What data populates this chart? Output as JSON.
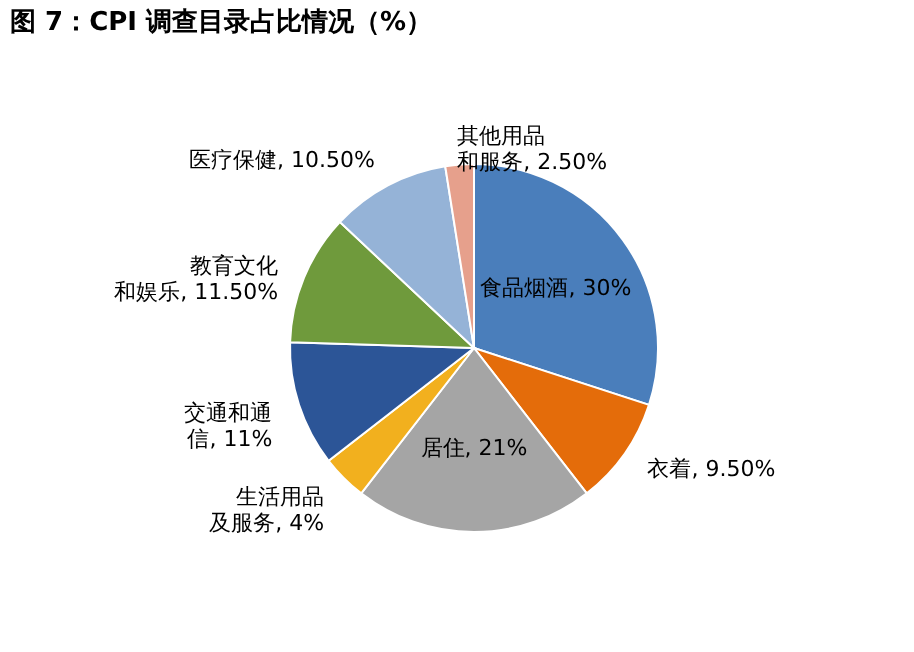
{
  "chart_data": {
    "type": "pie",
    "title": "图 7：CPI 调查目录占比情况（%）",
    "categories": [
      "食品烟酒",
      "衣着",
      "居住",
      "生活用品及服务",
      "交通和通信",
      "教育文化和娱乐",
      "医疗保健",
      "其他用品和服务"
    ],
    "values": [
      30,
      9.5,
      21,
      4,
      11,
      11.5,
      10.5,
      2.5
    ],
    "value_labels": [
      "30%",
      "9.50%",
      "21%",
      "4%",
      "11%",
      "11.50%",
      "10.50%",
      "2.50%"
    ],
    "colors": [
      "#4a7ebb",
      "#e46c0a",
      "#a5a5a5",
      "#f2b01e",
      "#2c5597",
      "#6f9a3c",
      "#95b3d7",
      "#e6a08c"
    ],
    "legend": false
  }
}
